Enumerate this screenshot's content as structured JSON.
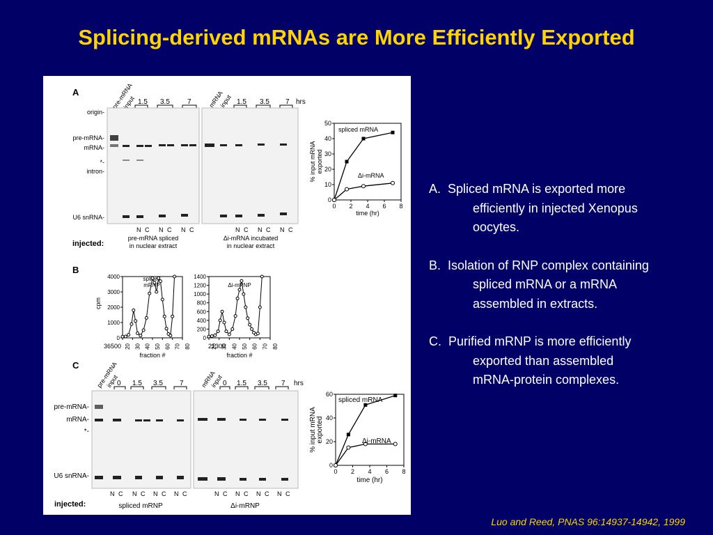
{
  "title": "Splicing-derived mRNAs are More Efficiently Exported",
  "notes": [
    {
      "label": "A.",
      "lines": [
        "Spliced mRNA is exported more",
        "efficiently in injected Xenopus",
        "oocytes."
      ]
    },
    {
      "label": "B.",
      "lines": [
        "Isolation of RNP complex containing",
        "spliced mRNA or a mRNA",
        "assembled in extracts."
      ]
    },
    {
      "label": "C.",
      "lines": [
        "Purified mRNP is more efficiently",
        "exported than assembled",
        "mRNA-protein complexes."
      ]
    }
  ],
  "citation": "Luo and Reed, PNAS  96:14937-14942, 1999",
  "colors": {
    "background": "#000066",
    "title": "#ffd400",
    "body_text": "#ffffff",
    "citation": "#ffd400"
  },
  "figure": {
    "panelA": {
      "letter": "A",
      "lanes_left": [
        "pre-mRNA",
        "input"
      ],
      "lanes_right": [
        "mRNA",
        "input"
      ],
      "times": [
        "1.5",
        "3.5",
        "7"
      ],
      "hrs": "hrs",
      "row_labels": [
        "origin-",
        "pre-mRNA-",
        "mRNA-",
        "*-",
        "intron-",
        "U6 snRNA-"
      ],
      "nc": [
        "N",
        "C"
      ],
      "injected_label": "injected:",
      "caption_left": [
        "pre-mRNA spliced",
        "in nuclear extract"
      ],
      "caption_right": [
        "Δi-mRNA incubated",
        "in nuclear extract"
      ]
    },
    "panelB": {
      "letter": "B",
      "ylabel": "cpm",
      "xlabel": "fraction #",
      "left_top": "36500",
      "right_top": "21300",
      "left_legend": [
        "spliced",
        "mRNP"
      ],
      "right_legend": "Δi-mRNP"
    },
    "panelC": {
      "letter": "C",
      "lanes_left": [
        "pre-mRNA",
        "input"
      ],
      "lanes_right": [
        "mRNA",
        "input"
      ],
      "times": [
        "0",
        "1.5",
        "3.5",
        "7"
      ],
      "hrs": "hrs",
      "row_labels": [
        "pre-mRNA-",
        "mRNA-",
        "*-",
        "U6 snRNA-"
      ],
      "nc": [
        "N",
        "C"
      ],
      "injected_label": "injected:",
      "caption_left": "spliced mRNP",
      "caption_right": "Δi-mRNP"
    }
  },
  "chart_data": [
    {
      "type": "line",
      "panel": "A",
      "xlabel": "time (hr)",
      "ylabel": "% input mRNA exported",
      "xlim": [
        0,
        8
      ],
      "ylim": [
        0,
        50
      ],
      "xticks": [
        0,
        2,
        4,
        6,
        8
      ],
      "yticks": [
        0,
        10,
        20,
        30,
        40,
        50
      ],
      "series": [
        {
          "name": "spliced mRNA",
          "marker": "filled-square",
          "x": [
            0,
            1.5,
            3.5,
            7
          ],
          "y": [
            0,
            25,
            40,
            44
          ]
        },
        {
          "name": "Δi-mRNA",
          "marker": "open-circle",
          "x": [
            0,
            1.5,
            3.5,
            7
          ],
          "y": [
            0,
            7,
            9,
            11
          ]
        }
      ]
    },
    {
      "type": "line",
      "panel": "B-left",
      "xlabel": "fraction #",
      "ylabel": "cpm",
      "xlim": [
        20,
        80
      ],
      "ylim": [
        0,
        4000
      ],
      "xticks": [
        20,
        30,
        40,
        50,
        60,
        70,
        80
      ],
      "yticks": [
        0,
        1000,
        2000,
        3000,
        4000
      ],
      "series": [
        {
          "name": "spliced mRNP",
          "x": [
            20,
            23,
            26,
            29,
            31,
            33,
            35,
            38,
            41,
            44,
            47,
            50,
            52,
            54,
            56,
            58,
            60,
            62,
            64,
            66,
            68,
            70,
            72
          ],
          "y": [
            80,
            90,
            200,
            900,
            1800,
            1100,
            300,
            150,
            500,
            1300,
            2900,
            3900,
            3600,
            3000,
            3900,
            3700,
            2500,
            1400,
            600,
            250,
            150,
            1400,
            4000
          ]
        }
      ]
    },
    {
      "type": "line",
      "panel": "B-right",
      "xlabel": "fraction #",
      "ylabel": "",
      "xlim": [
        20,
        80
      ],
      "ylim": [
        0,
        1400
      ],
      "xticks": [
        20,
        30,
        40,
        50,
        60,
        70,
        80
      ],
      "yticks": [
        0,
        200,
        400,
        600,
        800,
        1000,
        1200,
        1400
      ],
      "series": [
        {
          "name": "Δi-mRNP",
          "x": [
            20,
            23,
            26,
            29,
            31,
            33,
            35,
            37,
            40,
            43,
            46,
            48,
            50,
            52,
            54,
            56,
            58,
            60,
            62,
            64,
            66,
            68,
            70,
            72
          ],
          "y": [
            30,
            40,
            60,
            150,
            400,
            600,
            350,
            150,
            80,
            200,
            500,
            900,
            1100,
            1300,
            1000,
            700,
            450,
            300,
            200,
            120,
            80,
            100,
            700,
            1400
          ]
        }
      ]
    },
    {
      "type": "line",
      "panel": "C",
      "xlabel": "time (hr)",
      "ylabel": "% input mRNA exported",
      "xlim": [
        0,
        8
      ],
      "ylim": [
        0,
        60
      ],
      "xticks": [
        0,
        2,
        4,
        6,
        8
      ],
      "yticks": [
        0,
        20,
        40,
        60
      ],
      "series": [
        {
          "name": "spliced mRNA",
          "marker": "filled-square",
          "x": [
            0,
            1.5,
            3.5,
            7
          ],
          "y": [
            0,
            26,
            51,
            59
          ]
        },
        {
          "name": "Δi-mRNA",
          "marker": "open-circle",
          "x": [
            0,
            1.5,
            3.5,
            7
          ],
          "y": [
            0,
            15,
            18,
            18
          ]
        }
      ]
    }
  ]
}
